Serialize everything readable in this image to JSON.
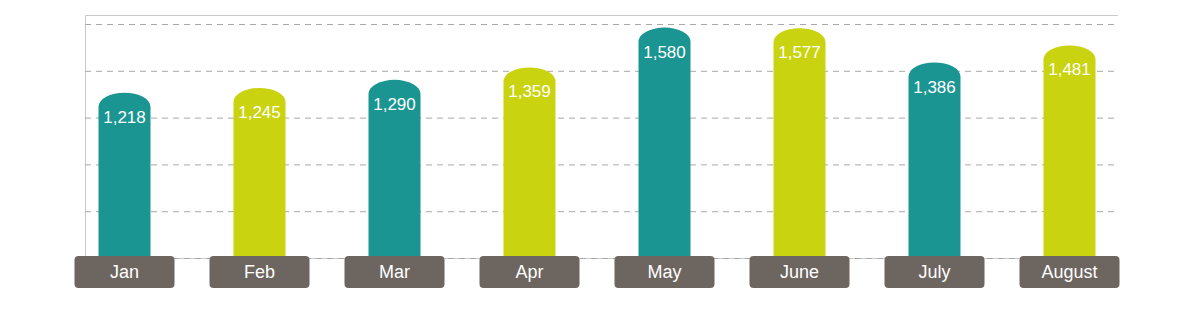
{
  "chart_data": {
    "type": "bar",
    "categories": [
      "Jan",
      "Feb",
      "Mar",
      "Apr",
      "May",
      "June",
      "July",
      "August"
    ],
    "values": [
      1218,
      1245,
      1290,
      1359,
      1580,
      1577,
      1386,
      1481
    ],
    "value_labels": [
      "1,218",
      "1,245",
      "1,290",
      "1,359",
      "1,580",
      "1,577",
      "1,386",
      "1,481"
    ],
    "colors": [
      "#1a9591",
      "#c9d30f",
      "#1a9591",
      "#c9d30f",
      "#1a9591",
      "#c9d30f",
      "#1a9591",
      "#c9d30f"
    ],
    "ylim": [
      300,
      1650
    ],
    "yticks": [
      300,
      560,
      820,
      1080,
      1340,
      1600
    ],
    "grid": true,
    "data_labels": true,
    "tick_labels": "x"
  }
}
